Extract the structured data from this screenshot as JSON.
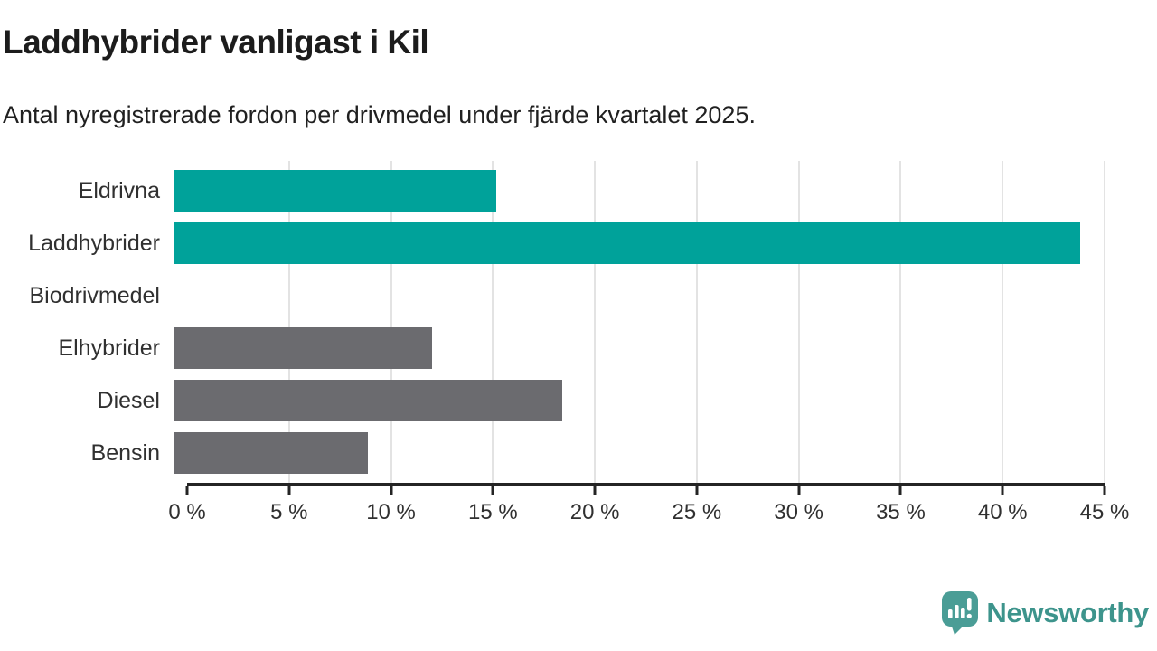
{
  "header": {
    "title": "Laddhybrider vanligast i Kil",
    "subtitle": "Antal nyregistrerade fordon per drivmedel under fjärde kvartalet 2025."
  },
  "chart_data": {
    "type": "bar",
    "orientation": "horizontal",
    "categories": [
      "Eldrivna",
      "Laddhybrider",
      "Biodrivmedel",
      "Elhybrider",
      "Diesel",
      "Bensin"
    ],
    "values": [
      15.6,
      43.8,
      0,
      12.5,
      18.8,
      9.4
    ],
    "unit": "%",
    "bar_colors": [
      "#00a29a",
      "#00a29a",
      "#6b6b6f",
      "#6b6b6f",
      "#6b6b6f",
      "#6b6b6f"
    ],
    "highlight_color": "#00a29a",
    "default_color": "#6b6b6f",
    "xlim": [
      0,
      45
    ],
    "x_ticks": [
      0,
      5,
      10,
      15,
      20,
      25,
      30,
      35,
      40,
      45
    ],
    "x_tick_labels": [
      "0 %",
      "5 %",
      "10 %",
      "15 %",
      "20 %",
      "25 %",
      "30 %",
      "35 %",
      "40 %",
      "45 %"
    ],
    "grid": "vertical-only",
    "legend": "none",
    "title": "Laddhybrider vanligast i Kil",
    "xlabel": "",
    "ylabel": ""
  },
  "footer": {
    "brand": "Newsworthy",
    "brand_color": "#3d948c",
    "logo_icon": "newsworthy-speech-bubble-chart-icon",
    "logo_icon_color": "#4a9d96"
  }
}
